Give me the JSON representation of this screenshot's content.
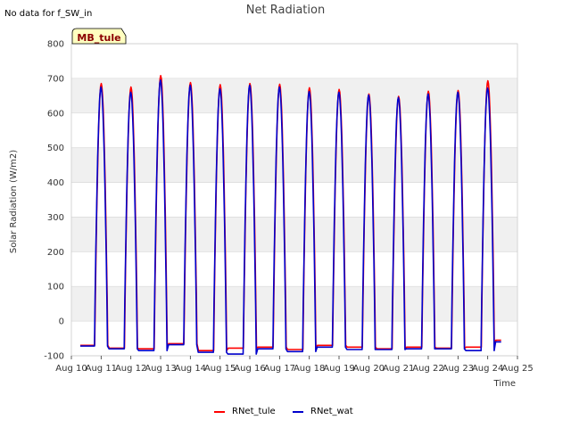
{
  "note": "No data for f_SW_in",
  "badge": {
    "label": "MB_tule",
    "fill": "#ffffc0",
    "text_color": "#8b0000"
  },
  "chart_data": {
    "type": "line",
    "title": "Net Radiation",
    "xlabel": "Time",
    "ylabel": "Solar Radiation (W/m2)",
    "ylim": [
      -100,
      800
    ],
    "yticks": [
      -100,
      0,
      100,
      200,
      300,
      400,
      500,
      600,
      700,
      800
    ],
    "xlim": [
      10,
      25
    ],
    "xticks": [
      10,
      11,
      12,
      13,
      14,
      15,
      16,
      17,
      18,
      19,
      20,
      21,
      22,
      23,
      24,
      25
    ],
    "xtick_labels": [
      "Aug 10",
      "Aug 11",
      "Aug 12",
      "Aug 13",
      "Aug 14",
      "Aug 15",
      "Aug 16",
      "Aug 17",
      "Aug 18",
      "Aug 19",
      "Aug 20",
      "Aug 21",
      "Aug 22",
      "Aug 23",
      "Aug 24",
      "Aug 25"
    ],
    "grid": true,
    "band_colors": [
      "#f0f0f0",
      "#ffffff"
    ],
    "x_start": 10.3,
    "x_end": 24.45,
    "series": [
      {
        "name": "RNet_tule",
        "color": "#ff0000",
        "daily_peaks": [
          685,
          675,
          708,
          688,
          682,
          685,
          683,
          673,
          668,
          655,
          648,
          663,
          665,
          693
        ],
        "night_values": [
          -70,
          -78,
          -80,
          -65,
          -85,
          -78,
          -75,
          -82,
          -70,
          -75,
          -80,
          -75,
          -78,
          -75,
          -55
        ]
      },
      {
        "name": "RNet_wat",
        "color": "#0000cc",
        "daily_peaks": [
          675,
          660,
          695,
          680,
          670,
          680,
          675,
          662,
          660,
          652,
          645,
          655,
          660,
          672
        ],
        "night_values": [
          -72,
          -80,
          -85,
          -68,
          -90,
          -95,
          -80,
          -88,
          -75,
          -82,
          -82,
          -80,
          -80,
          -85,
          -60
        ]
      }
    ]
  }
}
